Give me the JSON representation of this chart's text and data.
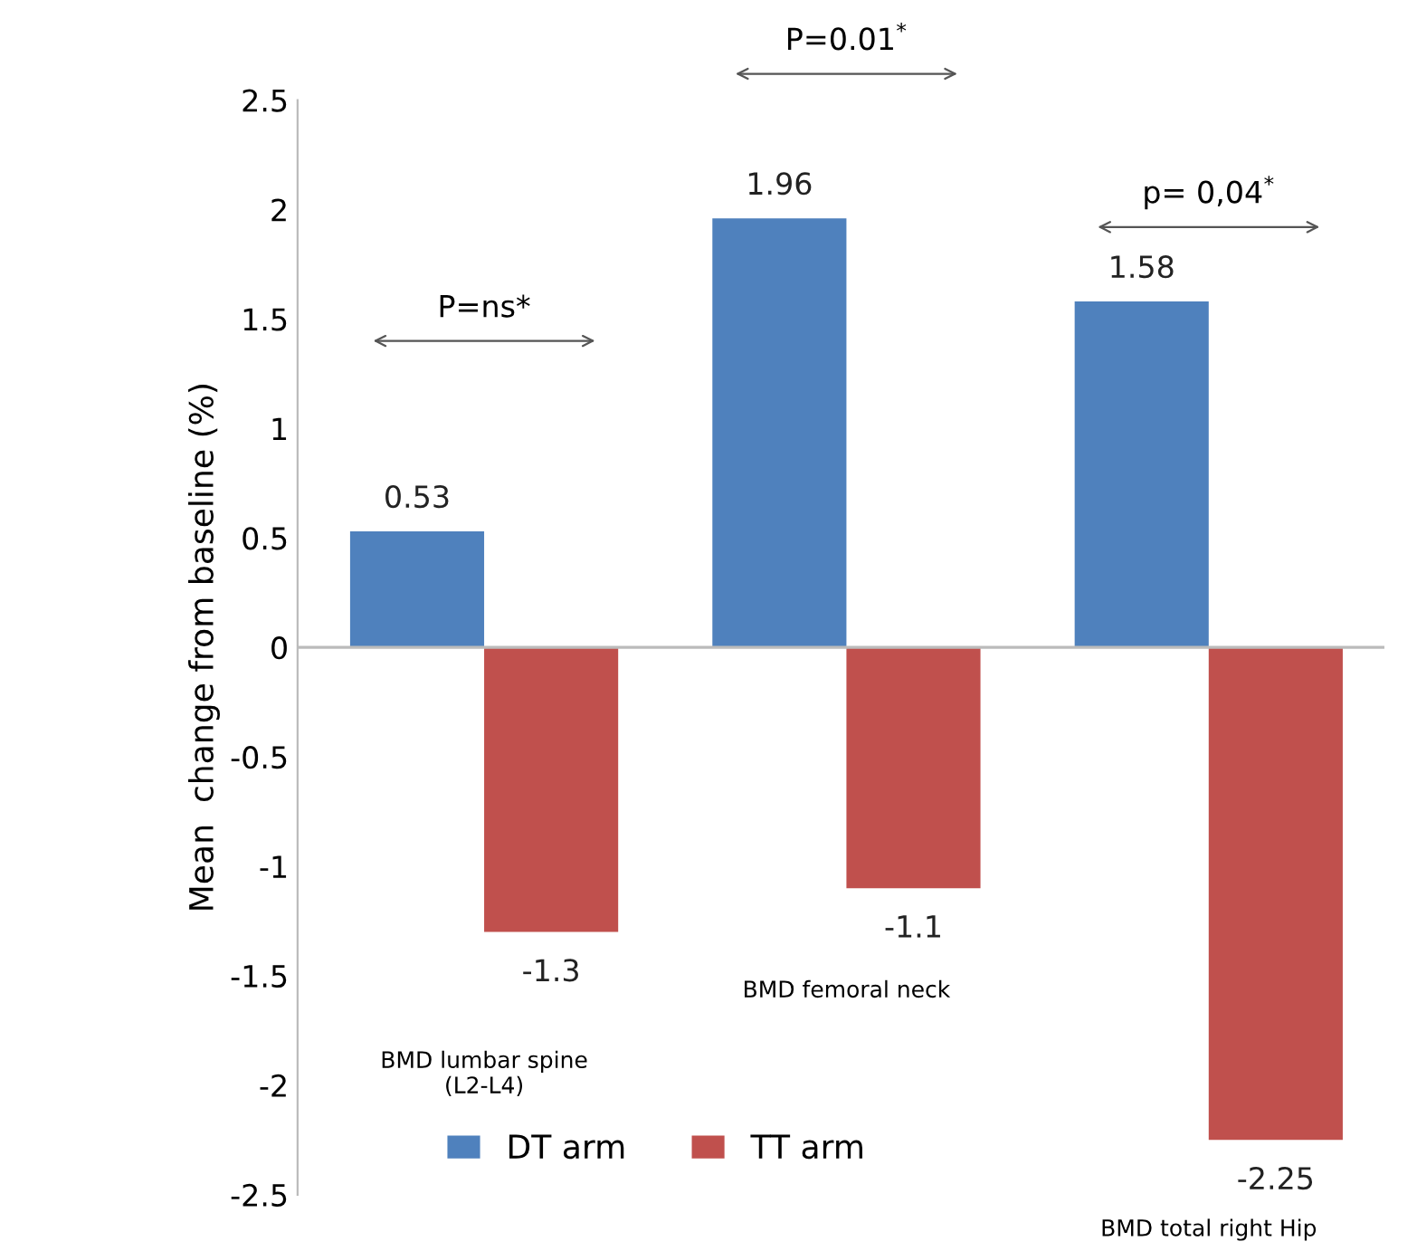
{
  "chart_data": {
    "type": "bar",
    "ylabel": "Mean  change from baseline (%)",
    "categories": [
      "BMD lumbar spine\n(L2-L4)",
      "BMD femoral neck",
      "BMD total right Hip"
    ],
    "series": [
      {
        "name": "DT arm",
        "color": "#4f81bd",
        "values": [
          0.53,
          1.96,
          1.58
        ]
      },
      {
        "name": "TT arm",
        "color": "#c0504d",
        "values": [
          -1.3,
          -1.1,
          -2.25
        ]
      }
    ],
    "ylim": [
      -2.5,
      2.5
    ],
    "yticks": [
      -2.5,
      -2,
      -1.5,
      -1,
      -0.5,
      0,
      0.5,
      1,
      1.5,
      2,
      2.5
    ],
    "ref_lines": [
      {
        "axis": "y",
        "value": 0,
        "color": "#bbbbbb"
      }
    ],
    "data_labels": true,
    "legend": "bottom",
    "grid": false,
    "annotations": [
      "P=ns*",
      "P=0.01$^{*}$",
      "p= 0,04$^{*}$"
    ]
  }
}
